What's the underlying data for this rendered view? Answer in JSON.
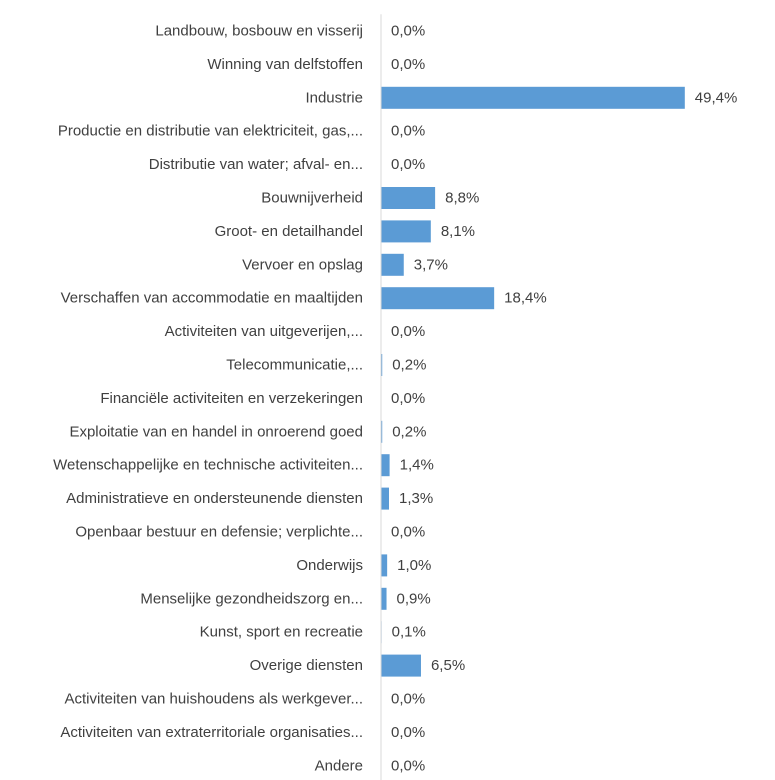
{
  "chart_data": {
    "type": "bar",
    "orientation": "horizontal",
    "categories": [
      "Landbouw, bosbouw en visserij",
      "Winning van delfstoffen",
      "Industrie",
      "Productie en distributie van elektriciteit, gas,...",
      "Distributie van water; afval- en...",
      "Bouwnijverheid",
      "Groot- en detailhandel",
      "Vervoer en opslag",
      "Verschaffen van accommodatie en maaltijden",
      "Activiteiten van uitgeverijen,...",
      "Telecommunicatie,...",
      "Financiële activiteiten en verzekeringen",
      "Exploitatie van en handel in onroerend goed",
      "Wetenschappelijke en technische activiteiten...",
      "Administratieve en ondersteunende diensten",
      "Openbaar bestuur en defensie; verplichte...",
      "Onderwijs",
      "Menselijke gezondheidszorg en...",
      "Kunst, sport en recreatie",
      "Overige diensten",
      "Activiteiten van huishoudens als werkgever...",
      "Activiteiten van extraterritoriale organisaties...",
      "Andere"
    ],
    "values": [
      0.0,
      0.0,
      49.4,
      0.0,
      0.0,
      8.8,
      8.1,
      3.7,
      18.4,
      0.0,
      0.2,
      0.0,
      0.2,
      1.4,
      1.3,
      0.0,
      1.0,
      0.9,
      0.1,
      6.5,
      0.0,
      0.0,
      0.0
    ],
    "value_labels": [
      "0,0%",
      "0,0%",
      "49,4%",
      "0,0%",
      "0,0%",
      "8,8%",
      "8,1%",
      "3,7%",
      "18,4%",
      "0,0%",
      "0,2%",
      "0,0%",
      "0,2%",
      "1,4%",
      "1,3%",
      "0,0%",
      "1,0%",
      "0,9%",
      "0,1%",
      "6,5%",
      "0,0%",
      "0,0%",
      "0,0%"
    ],
    "unit": "%",
    "xlim": [
      0,
      50
    ],
    "grid": false,
    "legend": "none",
    "bar_color": "#5b9bd5",
    "axis_color": "#d9d9d9",
    "text_color": "#404040"
  }
}
